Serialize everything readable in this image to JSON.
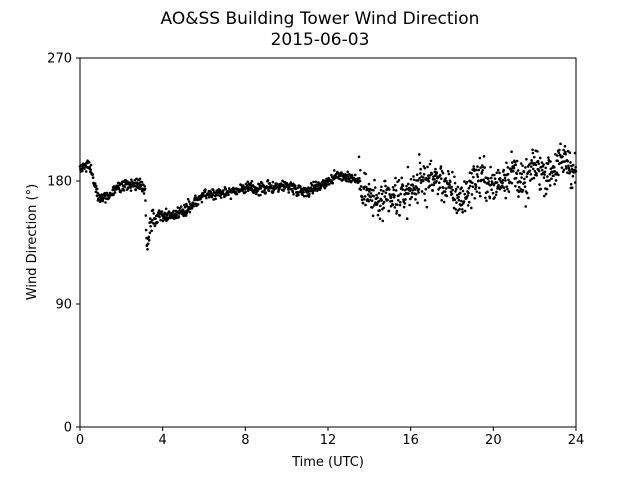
{
  "chart_data": {
    "type": "scatter",
    "title": "AO&SS Building Tower Wind Direction",
    "subtitle": "2015-06-03",
    "xlabel": "Time (UTC)",
    "ylabel": "Wind Direction (°)",
    "xlim": [
      0,
      24
    ],
    "ylim": [
      0,
      270
    ],
    "xticks": [
      0,
      4,
      8,
      12,
      16,
      20,
      24
    ],
    "yticks": [
      0,
      90,
      180,
      270
    ],
    "grid": false,
    "point_color": "#000000",
    "trend": {
      "x": [
        0,
        0.2,
        0.4,
        0.6,
        0.8,
        1.0,
        1.2,
        1.5,
        1.8,
        2.1,
        2.4,
        2.7,
        3.0,
        3.15,
        3.22,
        3.3,
        3.45,
        3.6,
        3.8,
        4.0,
        4.5,
        5.0,
        5.5,
        6.0,
        6.5,
        7.0,
        7.5,
        8.0,
        8.5,
        9.0,
        9.5,
        10.0,
        10.5,
        11.0,
        11.5,
        12.0,
        12.5,
        13.0,
        13.5,
        14.0,
        14.5,
        15.0,
        15.5,
        16.0,
        16.5,
        17.0,
        17.5,
        18.0,
        18.5,
        19.0,
        19.5,
        20.0,
        20.5,
        21.0,
        21.5,
        22.0,
        22.5,
        23.0,
        23.5,
        24.0
      ],
      "y": [
        188,
        191,
        193,
        185,
        172,
        168,
        168,
        170,
        175,
        176,
        177,
        178,
        177,
        174,
        130,
        138,
        148,
        154,
        157,
        155,
        155,
        158,
        164,
        170,
        171,
        172,
        173,
        175,
        174,
        175,
        176,
        177,
        174,
        173,
        176,
        180,
        184,
        183,
        180,
        168,
        163,
        166,
        168,
        174,
        180,
        182,
        180,
        172,
        165,
        180,
        183,
        175,
        183,
        188,
        176,
        192,
        185,
        190,
        196,
        185
      ]
    },
    "scatter_by_hour": [
      {
        "from": 0,
        "to": 3.2,
        "spread": 3
      },
      {
        "from": 3.2,
        "to": 3.8,
        "spread": 5
      },
      {
        "from": 3.8,
        "to": 13.5,
        "spread": 3
      },
      {
        "from": 13.5,
        "to": 24,
        "spread": 10
      }
    ]
  }
}
